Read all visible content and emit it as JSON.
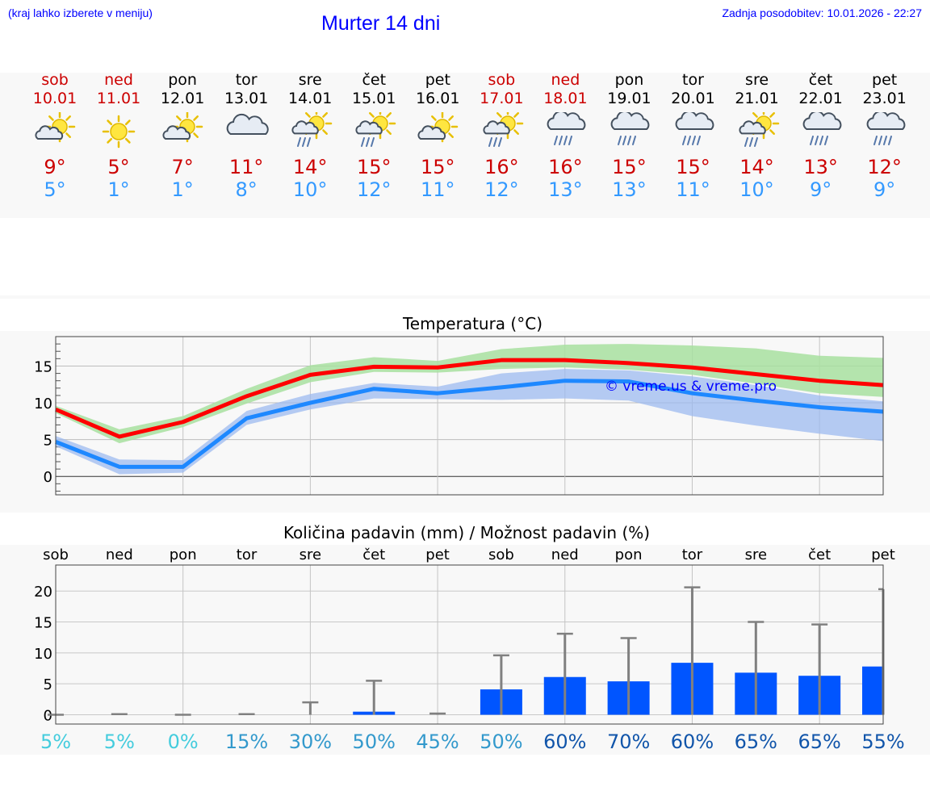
{
  "header": {
    "note": "(kraj lahko izberete v meniju)",
    "title": "Murter 14 dni",
    "updated": "Zadnja posodobitev: 10.01.2026 - 22:27"
  },
  "colors": {
    "max_temp": "#ff0000",
    "min_temp": "#1e88ff",
    "max_band": "#a8e0a0",
    "min_band": "#9ab8f0",
    "bar": "#0055ff",
    "whisker": "#808080",
    "weekend": "#cc0000",
    "title_blue": "#0000ff"
  },
  "forecast": [
    {
      "day": "sob",
      "date": "10.01",
      "icon": "sun-cloud-icon",
      "max": "9°",
      "min": "5°",
      "weekend": true
    },
    {
      "day": "ned",
      "date": "11.01",
      "icon": "sun-icon",
      "max": "5°",
      "min": "1°",
      "weekend": true
    },
    {
      "day": "pon",
      "date": "12.01",
      "icon": "sun-cloud-icon",
      "max": "7°",
      "min": "1°",
      "weekend": false
    },
    {
      "day": "tor",
      "date": "13.01",
      "icon": "cloud-icon",
      "max": "11°",
      "min": "8°",
      "weekend": false
    },
    {
      "day": "sre",
      "date": "14.01",
      "icon": "sun-cloud-rain-icon",
      "max": "14°",
      "min": "10°",
      "weekend": false
    },
    {
      "day": "čet",
      "date": "15.01",
      "icon": "sun-cloud-rain-icon",
      "max": "15°",
      "min": "12°",
      "weekend": false
    },
    {
      "day": "pet",
      "date": "16.01",
      "icon": "sun-cloud-icon",
      "max": "15°",
      "min": "11°",
      "weekend": false
    },
    {
      "day": "sob",
      "date": "17.01",
      "icon": "sun-cloud-rain-icon",
      "max": "16°",
      "min": "12°",
      "weekend": true
    },
    {
      "day": "ned",
      "date": "18.01",
      "icon": "cloud-rain-icon",
      "max": "16°",
      "min": "13°",
      "weekend": true
    },
    {
      "day": "pon",
      "date": "19.01",
      "icon": "cloud-rain-icon",
      "max": "15°",
      "min": "13°",
      "weekend": false
    },
    {
      "day": "tor",
      "date": "20.01",
      "icon": "cloud-rain-icon",
      "max": "15°",
      "min": "11°",
      "weekend": false
    },
    {
      "day": "sre",
      "date": "21.01",
      "icon": "sun-cloud-rain-icon",
      "max": "14°",
      "min": "10°",
      "weekend": false
    },
    {
      "day": "čet",
      "date": "22.01",
      "icon": "cloud-rain-icon",
      "max": "13°",
      "min": "9°",
      "weekend": false
    },
    {
      "day": "pet",
      "date": "23.01",
      "icon": "cloud-rain-icon",
      "max": "12°",
      "min": "9°",
      "weekend": false
    }
  ],
  "chart_data": [
    {
      "type": "line",
      "title": "Temperatura (°C)",
      "watermark": "© vreme.us & vreme.pro",
      "x": [
        0,
        1,
        2,
        3,
        4,
        5,
        6,
        7,
        8,
        9,
        10,
        11,
        12,
        13
      ],
      "ylim": [
        -2.5,
        19
      ],
      "yticks": [
        0,
        5,
        10,
        15
      ],
      "series": [
        {
          "name": "max",
          "values": [
            9.1,
            5.4,
            7.4,
            10.9,
            13.8,
            14.9,
            14.8,
            15.8,
            15.8,
            15.4,
            14.8,
            13.9,
            13.0,
            12.4
          ]
        },
        {
          "name": "min",
          "values": [
            4.7,
            1.3,
            1.3,
            7.9,
            10.0,
            11.9,
            11.3,
            12.1,
            13.0,
            12.9,
            11.3,
            10.3,
            9.4,
            8.8
          ]
        }
      ],
      "bands": [
        {
          "name": "max",
          "lower": [
            8.6,
            4.5,
            6.7,
            9.9,
            12.8,
            14.2,
            14.1,
            14.6,
            14.8,
            14.5,
            13.8,
            12.6,
            11.3,
            10.8
          ],
          "upper": [
            9.6,
            6.4,
            8.2,
            11.9,
            15.1,
            16.2,
            15.7,
            17.3,
            17.9,
            18.0,
            17.8,
            17.4,
            16.4,
            16.1
          ]
        },
        {
          "name": "min",
          "lower": [
            4.1,
            0.3,
            0.5,
            7.0,
            9.1,
            10.6,
            10.5,
            10.4,
            10.6,
            10.3,
            8.2,
            6.9,
            5.8,
            4.8
          ],
          "upper": [
            5.5,
            2.3,
            2.2,
            8.9,
            11.2,
            12.7,
            12.2,
            14.0,
            14.6,
            14.4,
            13.6,
            12.4,
            11.0,
            10.2
          ]
        }
      ]
    },
    {
      "type": "bar",
      "title": "Količina padavin (mm) / Možnost padavin (%)",
      "categories": [
        "sob",
        "ned",
        "pon",
        "tor",
        "sre",
        "čet",
        "pet",
        "sob",
        "ned",
        "pon",
        "tor",
        "sre",
        "čet",
        "pet"
      ],
      "ylim": [
        -1.5,
        24.2
      ],
      "yticks": [
        0,
        5,
        10,
        15,
        20
      ],
      "series": [
        {
          "name": "Količina padavin (mm)",
          "values": [
            0,
            0,
            0,
            0,
            0,
            0.5,
            0,
            4.1,
            6.1,
            5.4,
            8.4,
            6.8,
            6.3,
            7.8
          ]
        },
        {
          "name": "max (mm)",
          "values": [
            0,
            0.1,
            0,
            0.1,
            2.0,
            5.5,
            0.2,
            9.6,
            13.1,
            12.4,
            20.6,
            15.0,
            14.6,
            20.3
          ]
        }
      ],
      "probabilities": [
        "5%",
        "5%",
        "0%",
        "15%",
        "30%",
        "50%",
        "45%",
        "50%",
        "60%",
        "70%",
        "60%",
        "65%",
        "65%",
        "55%"
      ],
      "probability_colors": [
        "#44ccdd",
        "#44ccdd",
        "#44ccdd",
        "#3399cc",
        "#3399cc",
        "#3399cc",
        "#3399cc",
        "#3399cc",
        "#1155aa",
        "#1155aa",
        "#1155aa",
        "#1155aa",
        "#1155aa",
        "#1155aa"
      ]
    }
  ]
}
